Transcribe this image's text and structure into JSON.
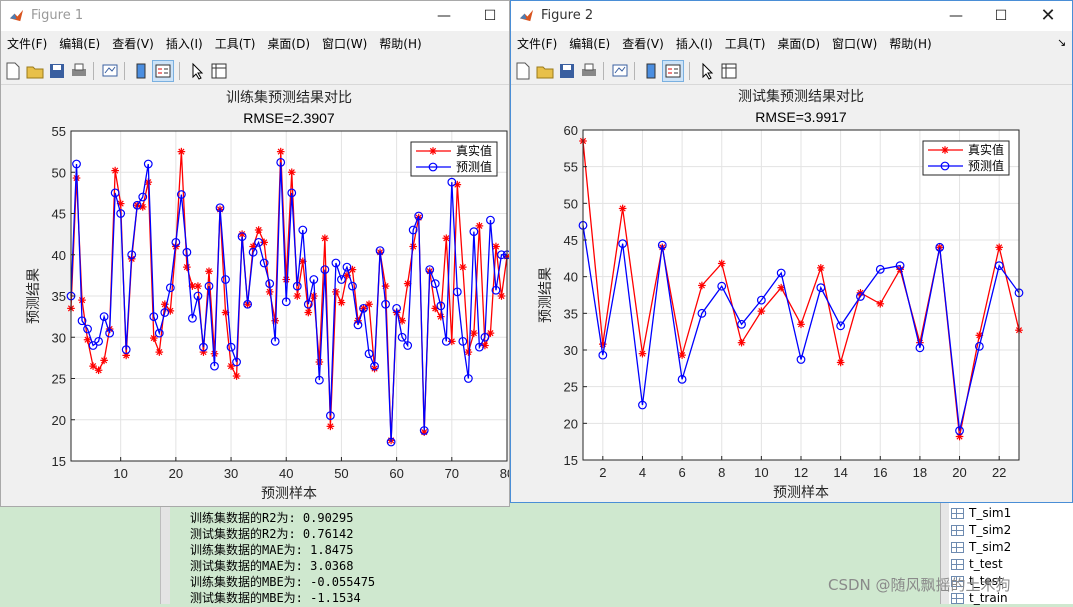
{
  "figure1": {
    "window_title": "Figure 1",
    "menu": [
      "文件(F)",
      "编辑(E)",
      "查看(V)",
      "插入(I)",
      "工具(T)",
      "桌面(D)",
      "窗口(W)",
      "帮助(H)"
    ],
    "chart": {
      "title": "训练集预测结果对比",
      "subtitle": "RMSE=2.3907",
      "xlabel": "预测样本",
      "ylabel": "预测结果"
    }
  },
  "figure2": {
    "window_title": "Figure 2",
    "menu": [
      "文件(F)",
      "编辑(E)",
      "查看(V)",
      "插入(I)",
      "工具(T)",
      "桌面(D)",
      "窗口(W)",
      "帮助(H)"
    ],
    "chart": {
      "title": "测试集预测结果对比",
      "subtitle": "RMSE=3.9917",
      "xlabel": "预测样本",
      "ylabel": "预测结果"
    }
  },
  "console": {
    "lines": [
      "训练集数据的R2为: 0.90295",
      "测试集数据的R2为: 0.76142",
      "训练集数据的MAE为: 1.8475",
      "测试集数据的MAE为: 3.0368",
      "训练集数据的MBE为: -0.055475",
      "测试集数据的MBE为: -1.1534"
    ]
  },
  "workspace": {
    "items": [
      "T_sim1",
      "T_sim2",
      "T_sim2",
      "t_test",
      "t_test",
      "t_train"
    ]
  },
  "watermark": "CSDN @随风飘摇的土木狗",
  "colors": {
    "true_series": "#ff0000",
    "pred_series": "#0000ff"
  },
  "chart_data": [
    {
      "type": "line",
      "title": "训练集预测结果对比",
      "subtitle": "RMSE=2.3907",
      "xlabel": "预测样本",
      "ylabel": "预测结果",
      "xlim": [
        1,
        80
      ],
      "ylim": [
        15,
        55
      ],
      "xticks": [
        10,
        20,
        30,
        40,
        50,
        60,
        70,
        80
      ],
      "yticks": [
        15,
        20,
        25,
        30,
        35,
        40,
        45,
        50,
        55
      ],
      "grid": true,
      "legend_position": "top-right",
      "series": [
        {
          "name": "真实值",
          "color": "#ff0000",
          "marker": "*",
          "values": [
            33.5,
            49.3,
            34.5,
            29.7,
            26.5,
            26.0,
            27.2,
            31.0,
            50.2,
            46.2,
            27.8,
            39.5,
            46.0,
            45.8,
            48.8,
            29.9,
            28.2,
            34.0,
            33.2,
            41.0,
            52.5,
            38.5,
            36.2,
            36.2,
            28.2,
            38.0,
            28.0,
            45.5,
            33.0,
            26.5,
            25.3,
            42.5,
            34.0,
            41.0,
            43.0,
            41.5,
            35.5,
            32.0,
            52.5,
            37.0,
            50.0,
            35.0,
            39.2,
            33.0,
            35.0,
            27.0,
            42.0,
            19.2,
            35.5,
            34.2,
            37.5,
            38.2,
            32.0,
            33.5,
            34.0,
            26.2,
            40.3,
            36.2,
            17.5,
            33.0,
            32.0,
            36.5,
            41.0,
            44.5,
            18.5,
            38.0,
            33.5,
            32.5,
            42.0,
            29.5,
            48.5,
            38.5,
            28.2,
            30.5,
            43.5,
            29.0,
            30.5,
            41.0,
            35.0,
            39.8
          ]
        },
        {
          "name": "预测值",
          "color": "#0000ff",
          "marker": "o",
          "values": [
            35.0,
            51.0,
            32.0,
            31.0,
            29.0,
            29.5,
            32.5,
            30.5,
            47.5,
            45.0,
            28.5,
            40.0,
            46.0,
            47.0,
            51.0,
            32.5,
            30.5,
            33.0,
            36.0,
            41.5,
            47.3,
            40.3,
            32.3,
            35.0,
            28.8,
            36.2,
            26.5,
            45.7,
            37.0,
            28.8,
            27.0,
            42.2,
            34.0,
            40.3,
            41.5,
            39.0,
            36.5,
            29.5,
            51.2,
            34.3,
            47.5,
            36.2,
            43.0,
            34.0,
            37.0,
            24.8,
            38.2,
            20.5,
            39.0,
            37.0,
            38.5,
            36.2,
            31.5,
            33.5,
            28.0,
            26.5,
            40.5,
            34.0,
            17.3,
            33.5,
            30.0,
            29.0,
            43.0,
            44.7,
            18.7,
            38.2,
            36.5,
            33.8,
            29.5,
            48.8,
            35.5,
            29.5,
            25.0,
            42.8,
            28.8,
            30.0,
            44.2,
            35.7,
            40.0,
            40.0
          ]
        }
      ]
    },
    {
      "type": "line",
      "title": "测试集预测结果对比",
      "subtitle": "RMSE=3.9917",
      "xlabel": "预测样本",
      "ylabel": "预测结果",
      "xlim": [
        1,
        23
      ],
      "ylim": [
        15,
        60
      ],
      "xticks": [
        2,
        4,
        6,
        8,
        10,
        12,
        14,
        16,
        18,
        20,
        22
      ],
      "yticks": [
        15,
        20,
        25,
        30,
        35,
        40,
        45,
        50,
        55,
        60
      ],
      "grid": true,
      "legend_position": "top-right",
      "series": [
        {
          "name": "真实值",
          "color": "#ff0000",
          "marker": "*",
          "values": [
            58.5,
            30.8,
            49.3,
            29.5,
            44.0,
            29.3,
            38.8,
            41.8,
            31.0,
            35.3,
            38.5,
            33.5,
            41.2,
            28.3,
            37.8,
            36.3,
            41.0,
            31.0,
            44.0,
            18.2,
            32.0,
            44.0,
            32.7
          ]
        },
        {
          "name": "预测值",
          "color": "#0000ff",
          "marker": "o",
          "values": [
            47.0,
            29.3,
            44.5,
            22.5,
            44.3,
            26.0,
            35.0,
            38.7,
            33.5,
            36.8,
            40.5,
            28.7,
            38.5,
            33.3,
            37.3,
            41.0,
            41.5,
            30.3,
            44.0,
            19.0,
            30.5,
            41.5,
            37.8
          ]
        }
      ]
    }
  ]
}
